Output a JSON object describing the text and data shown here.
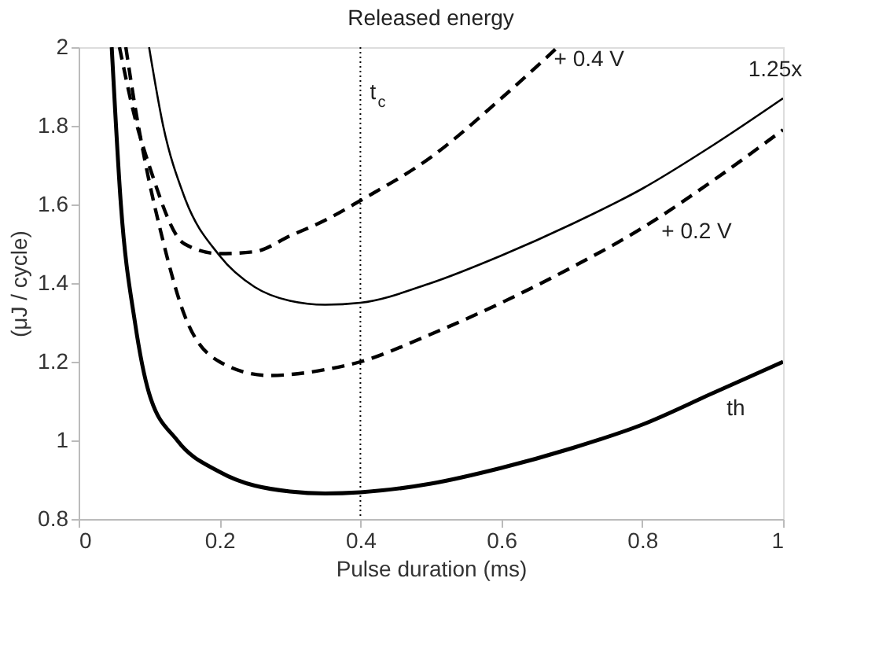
{
  "chart_data": {
    "type": "line",
    "title": "Released energy",
    "xlabel": "Pulse duration (ms)",
    "ylabel": "(μJ / cycle)",
    "xlim": [
      0,
      1
    ],
    "ylim": [
      0.8,
      2
    ],
    "xticks": [
      0,
      0.2,
      0.4,
      0.6,
      0.8,
      1
    ],
    "yticks": [
      0.8,
      1,
      1.2,
      1.4,
      1.6,
      1.8,
      2
    ],
    "grid": false,
    "marker": "none",
    "ref_lines": [
      {
        "axis": "x",
        "value": 0.4,
        "label": "t$_{c}$",
        "line_style": "dotted",
        "color": "#000000"
      }
    ],
    "series": [
      {
        "name": "th",
        "color": "#000000",
        "line_style": "solid",
        "x": [
          0.047,
          0.06,
          0.08,
          0.1,
          0.14,
          0.2,
          0.3,
          0.35,
          0.4,
          0.5,
          0.6,
          0.7,
          0.8,
          0.9,
          1.0
        ],
        "values": [
          2,
          1.6,
          1.3,
          1.12,
          1.0,
          0.92,
          0.87,
          0.865,
          0.868,
          0.89,
          0.93,
          0.98,
          1.04,
          1.12,
          1.2
        ]
      },
      {
        "name": "+ 0.2 V",
        "color": "#000000",
        "line_style": "dashed",
        "x": [
          0.067,
          0.08,
          0.1,
          0.114,
          0.15,
          0.2,
          0.27,
          0.35,
          0.4,
          0.5,
          0.6,
          0.7,
          0.8,
          0.9,
          1.0
        ],
        "values": [
          2,
          1.85,
          1.66,
          1.55,
          1.32,
          1.2,
          1.165,
          1.18,
          1.2,
          1.27,
          1.35,
          1.44,
          1.54,
          1.66,
          1.79
        ]
      },
      {
        "name": "1.25x",
        "color": "#000000",
        "line_style": "solid",
        "x": [
          0.1,
          0.12,
          0.15,
          0.2,
          0.25,
          0.3,
          0.35,
          0.4,
          0.5,
          0.6,
          0.7,
          0.8,
          0.9,
          1.0
        ],
        "values": [
          2,
          1.8,
          1.62,
          1.47,
          1.39,
          1.355,
          1.345,
          1.35,
          1.4,
          1.47,
          1.55,
          1.64,
          1.75,
          1.87
        ]
      },
      {
        "name": "+ 0.4 V",
        "color": "#000000",
        "line_style": "dashed",
        "x": [
          0.058,
          0.08,
          0.1,
          0.15,
          0.2,
          0.25,
          0.3,
          0.35,
          0.4,
          0.5,
          0.6,
          0.68
        ],
        "values": [
          2,
          1.82,
          1.7,
          1.5,
          1.475,
          1.48,
          1.52,
          1.56,
          1.61,
          1.72,
          1.87,
          2
        ]
      }
    ]
  }
}
